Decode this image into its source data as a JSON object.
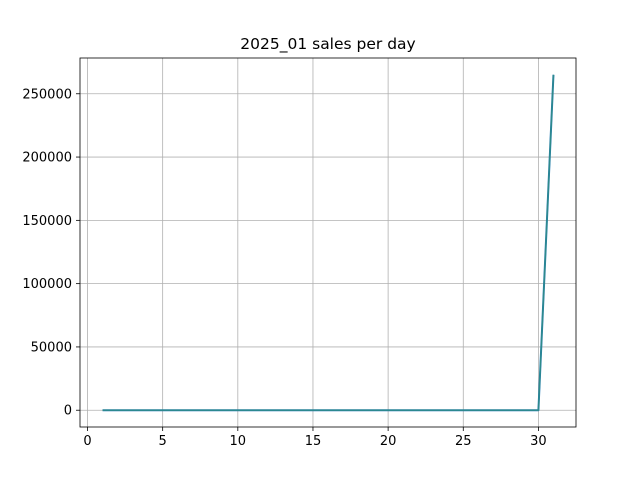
{
  "chart_data": {
    "type": "line",
    "title": "2025_01 sales per day",
    "xlabel": "",
    "ylabel": "",
    "xlim": [
      -0.5,
      32.5
    ],
    "ylim": [
      -13250,
      278250
    ],
    "grid": true,
    "x_ticks": [
      0,
      5,
      10,
      15,
      20,
      25,
      30
    ],
    "x_tick_labels": [
      "0",
      "5",
      "10",
      "15",
      "20",
      "25",
      "30"
    ],
    "y_ticks": [
      0,
      50000,
      100000,
      150000,
      200000,
      250000
    ],
    "y_tick_labels": [
      "0",
      "50000",
      "100000",
      "150000",
      "200000",
      "250000"
    ],
    "series": [
      {
        "color": "#1f77b4",
        "overlay_color": "#2e8b8b",
        "x": [
          1,
          2,
          3,
          4,
          5,
          6,
          7,
          8,
          9,
          10,
          11,
          12,
          13,
          14,
          15,
          16,
          17,
          18,
          19,
          20,
          21,
          22,
          23,
          24,
          25,
          26,
          27,
          28,
          29,
          30,
          31
        ],
        "y": [
          0,
          0,
          0,
          0,
          0,
          0,
          0,
          0,
          0,
          0,
          0,
          0,
          0,
          0,
          0,
          0,
          0,
          0,
          0,
          0,
          0,
          0,
          0,
          0,
          0,
          0,
          0,
          0,
          0,
          0,
          265000
        ]
      }
    ]
  }
}
